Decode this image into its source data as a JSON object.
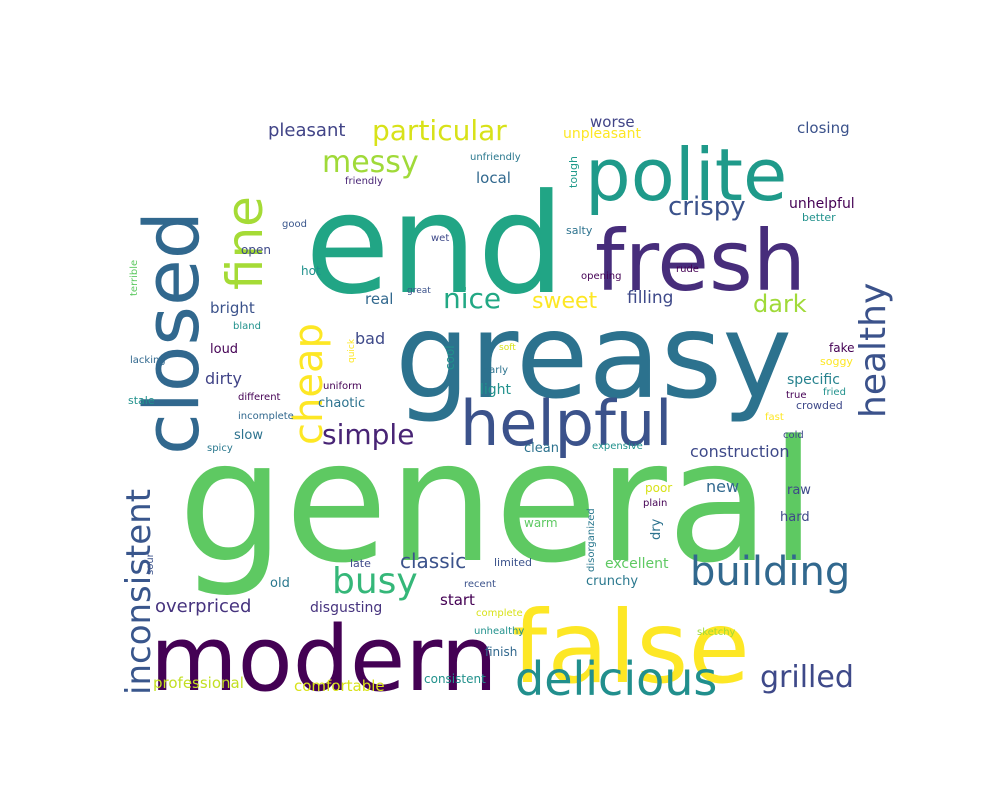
{
  "words": [
    {
      "text": "general",
      "size": 1.0,
      "color": "#5ec962",
      "rot": 0
    },
    {
      "text": "end",
      "size": 0.86,
      "color": "#21a585",
      "rot": 0
    },
    {
      "text": "greasy",
      "size": 0.76,
      "color": "#2c728e",
      "rot": 0
    },
    {
      "text": "false",
      "size": 0.62,
      "color": "#fde725",
      "rot": 0
    },
    {
      "text": "modern",
      "size": 0.58,
      "color": "#440154",
      "rot": 0
    },
    {
      "text": "fresh",
      "size": 0.52,
      "color": "#472d7b",
      "rot": 0
    },
    {
      "text": "closed",
      "size": 0.48,
      "color": "#31688e",
      "rot": 90
    },
    {
      "text": "polite",
      "size": 0.44,
      "color": "#1f9a8a",
      "rot": 0
    },
    {
      "text": "helpful",
      "size": 0.4,
      "color": "#3b528b",
      "rot": 0
    },
    {
      "text": "delicious",
      "size": 0.3,
      "color": "#218f8d",
      "rot": 0
    },
    {
      "text": "fine",
      "size": 0.3,
      "color": "#a5db36",
      "rot": 90
    },
    {
      "text": "building",
      "size": 0.24,
      "color": "#31688e",
      "rot": 0
    },
    {
      "text": "cheap",
      "size": 0.24,
      "color": "#fde725",
      "rot": 90
    },
    {
      "text": "healthy",
      "size": 0.22,
      "color": "#3b528b",
      "rot": 90
    },
    {
      "text": "busy",
      "size": 0.22,
      "color": "#35b779",
      "rot": 0
    },
    {
      "text": "inconsistent",
      "size": 0.22,
      "color": "#39568c",
      "rot": 90
    },
    {
      "text": "grilled",
      "size": 0.19,
      "color": "#3e4989",
      "rot": 0
    },
    {
      "text": "messy",
      "size": 0.19,
      "color": "#a0da39",
      "rot": 0
    },
    {
      "text": "simple",
      "size": 0.17,
      "color": "#482475",
      "rot": 0
    },
    {
      "text": "nice",
      "size": 0.17,
      "color": "#22a884",
      "rot": 0
    },
    {
      "text": "particular",
      "size": 0.17,
      "color": "#d8e219",
      "rot": 0
    },
    {
      "text": "crispy",
      "size": 0.16,
      "color": "#3b528b",
      "rot": 0
    },
    {
      "text": "dark",
      "size": 0.15,
      "color": "#a0da39",
      "rot": 0
    },
    {
      "text": "sweet",
      "size": 0.13,
      "color": "#fde725",
      "rot": 0
    },
    {
      "text": "classic",
      "size": 0.12,
      "color": "#3b528b",
      "rot": 0
    },
    {
      "text": "overpriced",
      "size": 0.1,
      "color": "#46337e",
      "rot": 0
    },
    {
      "text": "pleasant",
      "size": 0.1,
      "color": "#414487",
      "rot": 0
    },
    {
      "text": "filling",
      "size": 0.1,
      "color": "#3e4989",
      "rot": 0
    },
    {
      "text": "construction",
      "size": 0.09,
      "color": "#3e4989",
      "rot": 0
    },
    {
      "text": "new",
      "size": 0.09,
      "color": "#31688e",
      "rot": 0
    },
    {
      "text": "dirty",
      "size": 0.09,
      "color": "#414487",
      "rot": 0
    },
    {
      "text": "bad",
      "size": 0.09,
      "color": "#3e4989",
      "rot": 0
    },
    {
      "text": "real",
      "size": 0.08,
      "color": "#31688e",
      "rot": 0
    },
    {
      "text": "start",
      "size": 0.08,
      "color": "#440154",
      "rot": 0
    },
    {
      "text": "closing",
      "size": 0.08,
      "color": "#3b528b",
      "rot": 0
    },
    {
      "text": "worse",
      "size": 0.08,
      "color": "#414487",
      "rot": 0
    },
    {
      "text": "comfortable",
      "size": 0.08,
      "color": "#d8e219",
      "rot": 0
    },
    {
      "text": "professional",
      "size": 0.08,
      "color": "#c2df23",
      "rot": 0
    },
    {
      "text": "local",
      "size": 0.08,
      "color": "#31688e",
      "rot": 0
    },
    {
      "text": "bright",
      "size": 0.08,
      "color": "#3b528b",
      "rot": 0
    },
    {
      "text": "excellent",
      "size": 0.07,
      "color": "#5ec962",
      "rot": 0
    },
    {
      "text": "disgusting",
      "size": 0.07,
      "color": "#46337e",
      "rot": 0
    },
    {
      "text": "specific",
      "size": 0.07,
      "color": "#26828e",
      "rot": 0
    },
    {
      "text": "unhelpful",
      "size": 0.07,
      "color": "#440154",
      "rot": 0
    },
    {
      "text": "unpleasant",
      "size": 0.07,
      "color": "#fde725",
      "rot": 0
    },
    {
      "text": "light",
      "size": 0.07,
      "color": "#21918c",
      "rot": 0
    },
    {
      "text": "crunchy",
      "size": 0.06,
      "color": "#2a788e",
      "rot": 0
    },
    {
      "text": "slow",
      "size": 0.06,
      "color": "#2c728e",
      "rot": 0
    },
    {
      "text": "loud",
      "size": 0.06,
      "color": "#440154",
      "rot": 0
    },
    {
      "text": "chaotic",
      "size": 0.06,
      "color": "#2c728e",
      "rot": 0
    },
    {
      "text": "clean",
      "size": 0.06,
      "color": "#2c728e",
      "rot": 0
    },
    {
      "text": "old",
      "size": 0.06,
      "color": "#2a788e",
      "rot": 0
    },
    {
      "text": "raw",
      "size": 0.06,
      "color": "#3e4989",
      "rot": 0
    },
    {
      "text": "hard",
      "size": 0.06,
      "color": "#3e4989",
      "rot": 0
    },
    {
      "text": "dry",
      "size": 0.06,
      "color": "#2c728e",
      "rot": 90
    },
    {
      "text": "open",
      "size": 0.05,
      "color": "#3e4989",
      "rot": 0
    },
    {
      "text": "hot",
      "size": 0.05,
      "color": "#21918c",
      "rot": 0
    },
    {
      "text": "better",
      "size": 0.05,
      "color": "#21918c",
      "rot": 0
    },
    {
      "text": "fake",
      "size": 0.05,
      "color": "#440154",
      "rot": 0
    },
    {
      "text": "cool",
      "size": 0.05,
      "color": "#21918c",
      "rot": 90
    },
    {
      "text": "tough",
      "size": 0.05,
      "color": "#1f9a8a",
      "rot": 90
    },
    {
      "text": "poor",
      "size": 0.05,
      "color": "#d8e219",
      "rot": 0
    },
    {
      "text": "consistent",
      "size": 0.05,
      "color": "#21918c",
      "rot": 0
    },
    {
      "text": "finish",
      "size": 0.05,
      "color": "#31688e",
      "rot": 0
    },
    {
      "text": "warm",
      "size": 0.05,
      "color": "#5ec962",
      "rot": 0
    },
    {
      "text": "late",
      "size": 0.05,
      "color": "#3e4989",
      "rot": 0
    },
    {
      "text": "limited",
      "size": 0.05,
      "color": "#3b528b",
      "rot": 0
    },
    {
      "text": "salty",
      "size": 0.05,
      "color": "#2c728e",
      "rot": 0
    },
    {
      "text": "soggy",
      "size": 0.05,
      "color": "#fde725",
      "rot": 0
    },
    {
      "text": "stale",
      "size": 0.05,
      "color": "#21918c",
      "rot": 0
    },
    {
      "text": "disorganized",
      "size": 0.05,
      "color": "#2a788e",
      "rot": 90
    },
    {
      "text": "crowded",
      "size": 0.05,
      "color": "#3e4989",
      "rot": 0
    },
    {
      "text": "terrible",
      "size": 0.04,
      "color": "#5ec962",
      "rot": 90
    },
    {
      "text": "uniform",
      "size": 0.04,
      "color": "#440154",
      "rot": 0
    },
    {
      "text": "unfriendly",
      "size": 0.04,
      "color": "#2a788e",
      "rot": 0
    },
    {
      "text": "friendly",
      "size": 0.04,
      "color": "#482475",
      "rot": 0
    },
    {
      "text": "good",
      "size": 0.04,
      "color": "#39568c",
      "rot": 0
    },
    {
      "text": "wet",
      "size": 0.04,
      "color": "#3e4989",
      "rot": 0
    },
    {
      "text": "bland",
      "size": 0.04,
      "color": "#21918c",
      "rot": 0
    },
    {
      "text": "lacking",
      "size": 0.04,
      "color": "#31688e",
      "rot": 0
    },
    {
      "text": "different",
      "size": 0.04,
      "color": "#440154",
      "rot": 0
    },
    {
      "text": "incomplete",
      "size": 0.04,
      "color": "#31688e",
      "rot": 0
    },
    {
      "text": "spicy",
      "size": 0.04,
      "color": "#2a788e",
      "rot": 0
    },
    {
      "text": "quick",
      "size": 0.04,
      "color": "#fde725",
      "rot": 90
    },
    {
      "text": "great",
      "size": 0.04,
      "color": "#3b528b",
      "rot": 0
    },
    {
      "text": "soft",
      "size": 0.04,
      "color": "#d8e219",
      "rot": 0
    },
    {
      "text": "early",
      "size": 0.04,
      "color": "#2c728e",
      "rot": 0
    },
    {
      "text": "opening",
      "size": 0.04,
      "color": "#440154",
      "rot": 0
    },
    {
      "text": "rude",
      "size": 0.04,
      "color": "#440154",
      "rot": 0
    },
    {
      "text": "true",
      "size": 0.04,
      "color": "#440154",
      "rot": 0
    },
    {
      "text": "fried",
      "size": 0.04,
      "color": "#21918c",
      "rot": 0
    },
    {
      "text": "fast",
      "size": 0.04,
      "color": "#fde725",
      "rot": 0
    },
    {
      "text": "cold",
      "size": 0.04,
      "color": "#3e4989",
      "rot": 0
    },
    {
      "text": "expensive",
      "size": 0.04,
      "color": "#21918c",
      "rot": 0
    },
    {
      "text": "plain",
      "size": 0.04,
      "color": "#440154",
      "rot": 0
    },
    {
      "text": "recent",
      "size": 0.04,
      "color": "#3b528b",
      "rot": 0
    },
    {
      "text": "complete",
      "size": 0.04,
      "color": "#d8e219",
      "rot": 0
    },
    {
      "text": "unhealthy",
      "size": 0.04,
      "color": "#21918c",
      "rot": 0
    },
    {
      "text": "sketchy",
      "size": 0.04,
      "color": "#a0da39",
      "rot": 0
    },
    {
      "text": "sour",
      "size": 0.04,
      "color": "#3b528b",
      "rot": 90
    }
  ]
}
